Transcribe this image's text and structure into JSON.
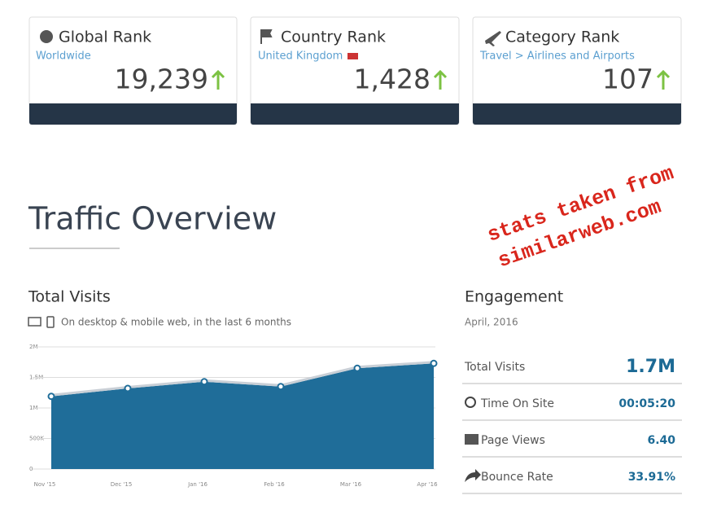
{
  "cards": [
    {
      "title": "Global Rank",
      "subtitle": "Worldwide",
      "value": "19,239"
    },
    {
      "title": "Country Rank",
      "subtitle": "United Kingdom",
      "value": "1,428"
    },
    {
      "title": "Category Rank",
      "subtitle": "Travel > Airlines and Airports",
      "value": "107"
    }
  ],
  "heading": "Traffic Overview",
  "stamp": [
    "stats taken from",
    "similarweb.com"
  ],
  "visits": {
    "title": "Total Visits",
    "note": "On desktop & mobile web, in the last 6 months"
  },
  "engagement": {
    "title": "Engagement",
    "date": "April, 2016",
    "rows": [
      {
        "label": "Total Visits",
        "value": "1.7M"
      },
      {
        "label": "Time On Site",
        "value": "00:05:20"
      },
      {
        "label": "Page Views",
        "value": "6.40"
      },
      {
        "label": "Bounce Rate",
        "value": "33.91%"
      }
    ]
  },
  "chart_data": {
    "type": "area",
    "categories": [
      "Nov '15",
      "Dec '15",
      "Jan '16",
      "Feb '16",
      "Mar '16",
      "Apr '16"
    ],
    "values": [
      1190000,
      1320000,
      1430000,
      1350000,
      1650000,
      1730000
    ],
    "color": "#1f6d99",
    "ylim": [
      0,
      2000000
    ],
    "yticks": [
      0,
      {
        "value": 500000,
        "label": "500K"
      },
      {
        "value": 1000000,
        "label": "1M"
      },
      {
        "value": 1500000,
        "label": "1.5M"
      },
      {
        "value": 2000000,
        "label": "2M"
      }
    ],
    "grid": true
  }
}
